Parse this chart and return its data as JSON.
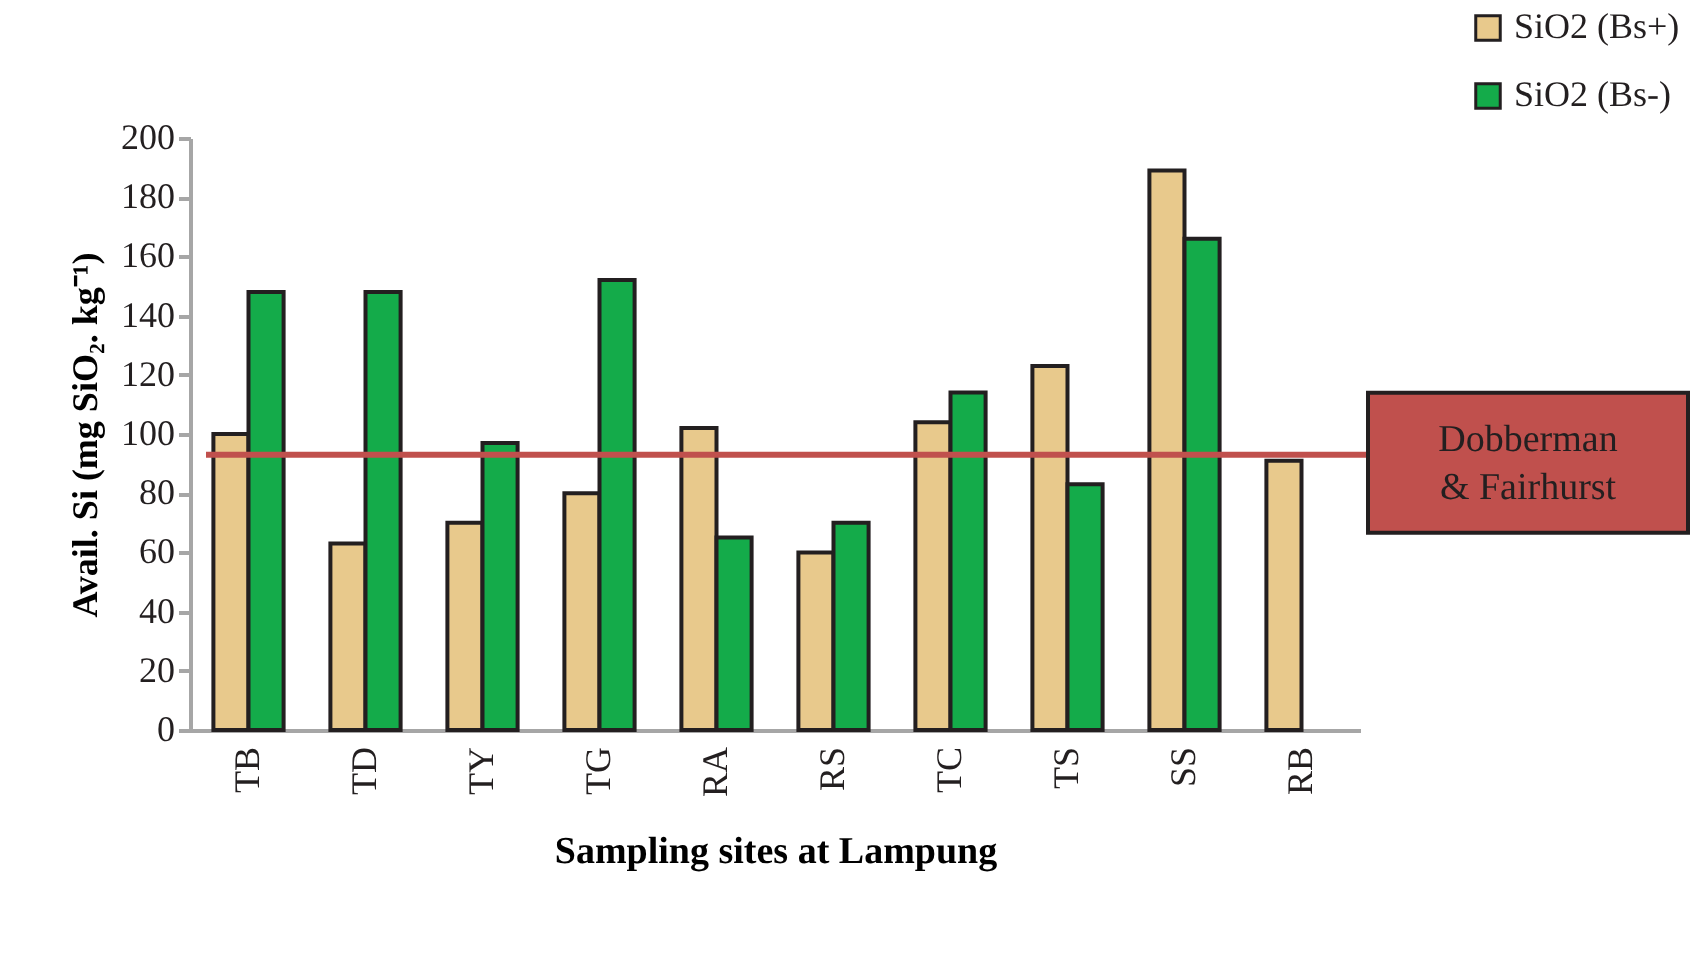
{
  "chart_data": {
    "type": "bar",
    "xlabel": "Sampling sites at Lampung",
    "ylabel": "Avail. Si (mg SiO₂. kg⁻¹)",
    "categories": [
      "TB",
      "TD",
      "TY",
      "TG",
      "RA",
      "RS",
      "TC",
      "TS",
      "SS",
      "RB"
    ],
    "series": [
      {
        "name": "SiO2 (Bs+)",
        "color": "#e8c98c",
        "values": [
          100,
          63,
          70,
          80,
          102,
          60,
          104,
          123,
          189,
          91
        ]
      },
      {
        "name": "SiO2 (Bs-)",
        "color": "#14ab4a",
        "values": [
          148,
          148,
          97,
          152,
          65,
          70,
          114,
          83,
          166,
          null
        ]
      }
    ],
    "ylim": [
      0,
      200
    ],
    "yticks": [
      0,
      20,
      40,
      60,
      80,
      100,
      120,
      140,
      160,
      180,
      200
    ],
    "ref_lines": [
      {
        "axis": "y",
        "value": 93,
        "label": "Dobberman & Fairhurst",
        "color": "#c0504d"
      }
    ],
    "grid": false,
    "legend": "top right"
  }
}
